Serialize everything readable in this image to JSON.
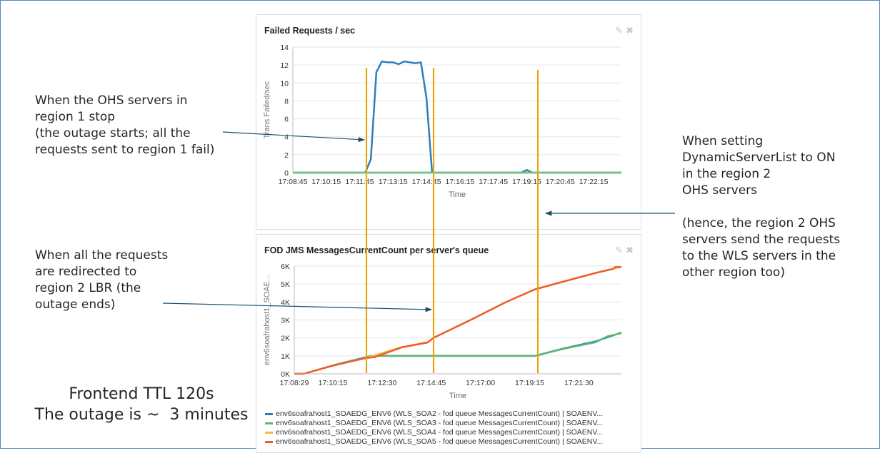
{
  "annotations": {
    "outage_start": "When the OHS servers in\nregion 1 stop\n(the outage starts; all the\nrequests sent to region 1 fail)",
    "outage_end": "When all the requests\nare redirected to\nregion 2 LBR (the\noutage ends)",
    "dynamic_server_list": "When setting\nDynamicServerList to ON\nin the region 2\nOHS servers\n\n(hence, the region 2 OHS\nservers send the requests\nto the WLS servers in the\nother region too)",
    "summary": "Frontend TTL 120s\nThe outage is ~  3 minutes"
  },
  "colors": {
    "marker_line": "#e8a712",
    "arrow": "#1f4e6b",
    "frame": "#5b7fc7"
  },
  "panel_icons": [
    "pencil-icon",
    "close-icon"
  ],
  "chart_data": [
    {
      "type": "line",
      "title": "Failed Requests / sec",
      "xlabel": "Time",
      "ylabel": "Trans Failed/sec",
      "ylim": [
        0,
        14
      ],
      "yticks": [
        "0",
        "2",
        "4",
        "6",
        "8",
        "10",
        "12",
        "14"
      ],
      "xlim": [
        "17:08:45",
        "17:23:30"
      ],
      "xticks": [
        "17:08:45",
        "17:10:15",
        "17:11:45",
        "17:13:15",
        "17:14:45",
        "17:16:15",
        "17:17:45",
        "17:19:15",
        "17:20:45",
        "17:22:15"
      ],
      "grid": true,
      "series": [
        {
          "color": "#2f7ebc",
          "points": [
            [
              "17:08:45",
              0
            ],
            [
              "17:12:00",
              0
            ],
            [
              "17:12:15",
              1.5
            ],
            [
              "17:12:30",
              11.2
            ],
            [
              "17:12:45",
              12.4
            ],
            [
              "17:13:00",
              12.3
            ],
            [
              "17:13:15",
              12.3
            ],
            [
              "17:13:30",
              12.1
            ],
            [
              "17:13:45",
              12.4
            ],
            [
              "17:14:00",
              12.3
            ],
            [
              "17:14:15",
              12.2
            ],
            [
              "17:14:30",
              12.3
            ],
            [
              "17:14:45",
              8.3
            ],
            [
              "17:15:00",
              0
            ],
            [
              "17:19:00",
              0
            ],
            [
              "17:19:15",
              0.3
            ],
            [
              "17:19:30",
              0
            ],
            [
              "17:23:30",
              0
            ]
          ]
        },
        {
          "color": "#6cc480",
          "points": [
            [
              "17:08:45",
              0
            ],
            [
              "17:23:30",
              0
            ]
          ]
        }
      ]
    },
    {
      "type": "line",
      "title": "FOD JMS MessagesCurrentCount per server's queue",
      "xlabel": "Time",
      "ylabel": "env6soafrahost1_SOAE...",
      "ylim": [
        0,
        6000
      ],
      "yticks": [
        "0K",
        "1K",
        "2K",
        "3K",
        "4K",
        "5K",
        "6K"
      ],
      "xlim": [
        "17:08:29",
        "17:23:27"
      ],
      "xticks": [
        "17:08:29",
        "17:10:15",
        "17:12:30",
        "17:14:45",
        "17:17:00",
        "17:19:15",
        "17:21:30"
      ],
      "grid": true,
      "series": [
        {
          "name": "env6soafrahost1_SOAEDG_ENV6 (WLS_SOA2 - fod queue MessagesCurrentCount) | SOAENV...",
          "color": "#2f7ebc",
          "points": [
            [
              "17:08:29",
              0
            ],
            [
              "17:08:55",
              0
            ],
            [
              "17:10:20",
              500
            ],
            [
              "17:11:45",
              920
            ],
            [
              "17:12:00",
              1000
            ],
            [
              "17:19:30",
              1000
            ],
            [
              "17:20:45",
              1400
            ],
            [
              "17:22:15",
              1800
            ],
            [
              "17:23:27",
              2300
            ]
          ]
        },
        {
          "name": "env6soafrahost1_SOAEDG_ENV6 (WLS_SOA3 - fod queue MessagesCurrentCount) | SOAENV...",
          "color": "#5cb86e",
          "points": [
            [
              "17:08:29",
              0
            ],
            [
              "17:08:55",
              0
            ],
            [
              "17:10:20",
              480
            ],
            [
              "17:11:45",
              900
            ],
            [
              "17:12:00",
              990
            ],
            [
              "17:19:30",
              990
            ],
            [
              "17:20:45",
              1380
            ],
            [
              "17:22:15",
              1750
            ],
            [
              "17:22:50",
              2100
            ],
            [
              "17:23:27",
              2260
            ]
          ]
        },
        {
          "name": "env6soafrahost1_SOAEDG_ENV6 (WLS_SOA4 - fod queue MessagesCurrentCount) | SOAENV...",
          "color": "#f5b942",
          "points": [
            [
              "17:08:29",
              0
            ],
            [
              "17:08:55",
              0
            ],
            [
              "17:10:20",
              490
            ],
            [
              "17:11:45",
              880
            ],
            [
              "17:13:25",
              1500
            ],
            [
              "17:14:35",
              1760
            ],
            [
              "17:14:51",
              2010
            ],
            [
              "17:16:33",
              3010
            ],
            [
              "17:18:11",
              4010
            ],
            [
              "17:19:30",
              4720
            ],
            [
              "17:20:23",
              5010
            ],
            [
              "17:22:13",
              5610
            ],
            [
              "17:23:05",
              5860
            ],
            [
              "17:23:27",
              5960
            ]
          ]
        },
        {
          "name": "env6soafrahost1_SOAEDG_ENV6 (WLS_SOA5 - fod queue MessagesCurrentCount) | SOAENV...",
          "color": "#f0592a",
          "points": [
            [
              "17:08:29",
              0
            ],
            [
              "17:08:55",
              0
            ],
            [
              "17:10:20",
              480
            ],
            [
              "17:11:45",
              880
            ],
            [
              "17:12:10",
              930
            ],
            [
              "17:13:25",
              1480
            ],
            [
              "17:14:35",
              1740
            ],
            [
              "17:14:51",
              2000
            ],
            [
              "17:16:33",
              3000
            ],
            [
              "17:18:11",
              4000
            ],
            [
              "17:19:30",
              4700
            ],
            [
              "17:20:23",
              5000
            ],
            [
              "17:22:13",
              5600
            ],
            [
              "17:23:05",
              5850
            ],
            [
              "17:23:10",
              5950
            ],
            [
              "17:23:27",
              5950
            ]
          ]
        }
      ]
    }
  ]
}
